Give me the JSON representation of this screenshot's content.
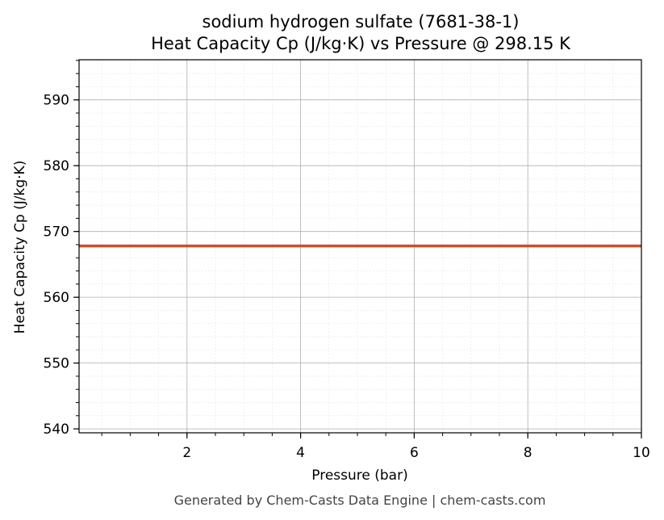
{
  "chart_data": {
    "type": "line",
    "title": "sodium hydrogen sulfate (7681-38-1)",
    "subtitle": "Heat Capacity Cp (J/kg·K) vs Pressure @ 298.15 K",
    "xlabel": "Pressure (bar)",
    "ylabel": "Heat Capacity Cp (J/kg·K)",
    "xlim": [
      0.1,
      10
    ],
    "ylim": [
      539.4,
      596.1
    ],
    "xticks": [
      2,
      4,
      6,
      8,
      10
    ],
    "yticks": [
      540,
      550,
      560,
      570,
      580,
      590
    ],
    "grid": true,
    "series": [
      {
        "color": "#c8522a",
        "x": [
          0.1,
          1,
          2,
          3,
          4,
          5,
          6,
          7,
          8,
          9,
          10
        ],
        "y": [
          567.8,
          567.8,
          567.8,
          567.8,
          567.8,
          567.8,
          567.8,
          567.8,
          567.8,
          567.8,
          567.8
        ]
      }
    ]
  },
  "footer": "Generated by Chem-Casts Data Engine | chem-casts.com"
}
